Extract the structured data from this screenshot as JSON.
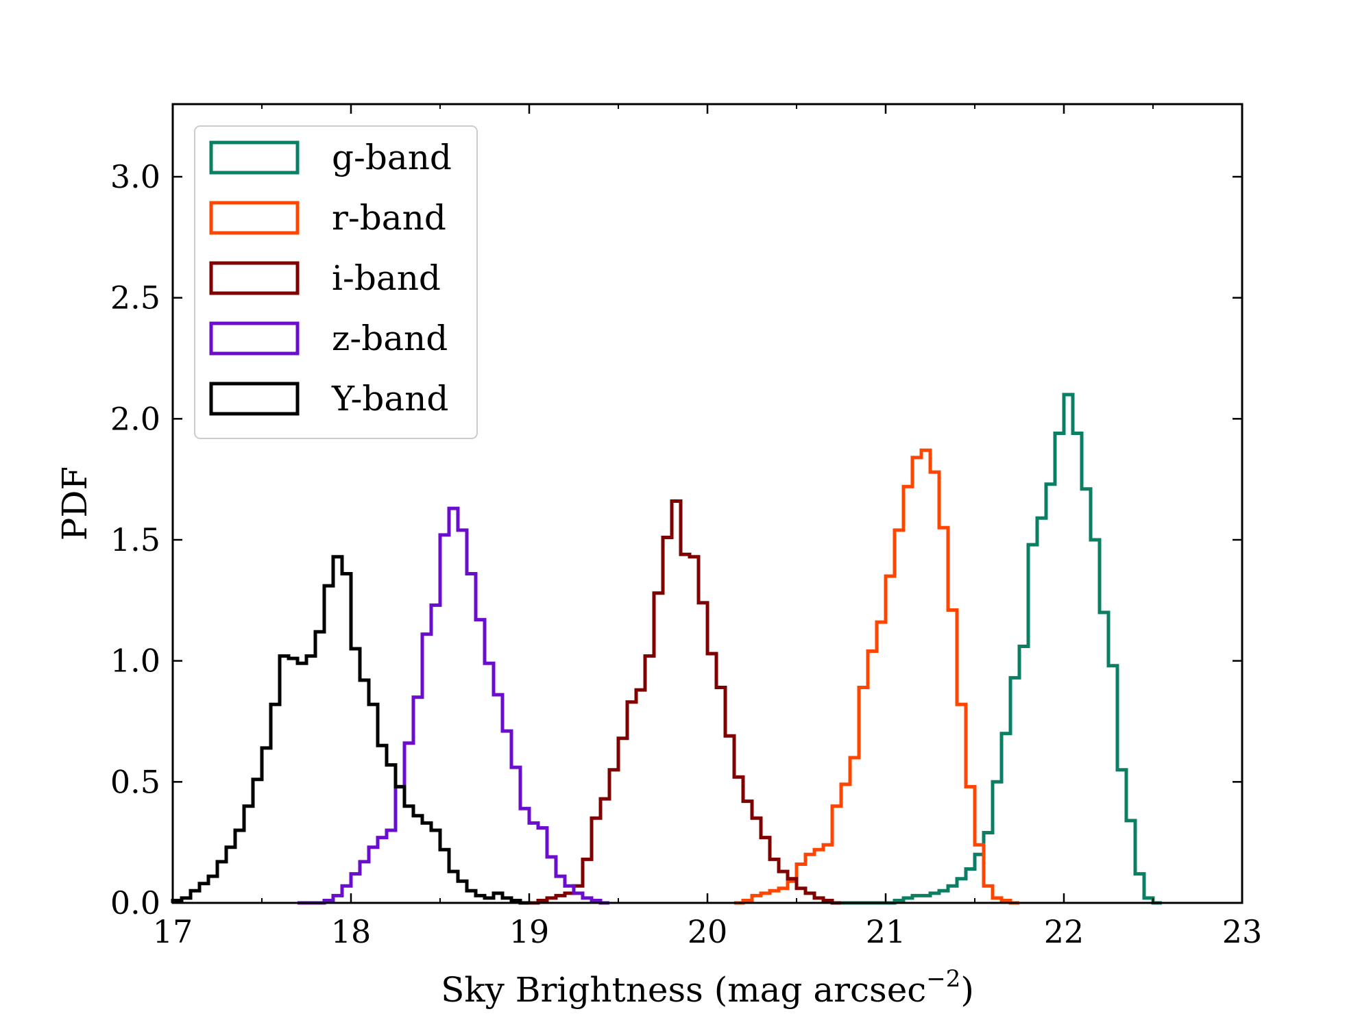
{
  "chart_data": {
    "type": "histogram",
    "title": "",
    "xlabel": "Sky Brightness (mag arcsec",
    "xlabel_superscript": "−2",
    "xlabel_suffix": ")",
    "ylabel": "PDF",
    "xlim": [
      17,
      23
    ],
    "ylim": [
      0,
      3.3
    ],
    "xticks": [
      17,
      18,
      19,
      20,
      21,
      22,
      23
    ],
    "xtick_labels": [
      "17",
      "18",
      "19",
      "20",
      "21",
      "22",
      "23"
    ],
    "yticks": [
      0,
      0.5,
      1.0,
      1.5,
      2.0,
      2.5,
      3.0
    ],
    "ytick_labels": [
      "0.0",
      "0.5",
      "1.0",
      "1.5",
      "2.0",
      "2.5",
      "3.0"
    ],
    "minor_xtick_interval": 0.5,
    "tick_direction": "in",
    "grid": false,
    "legend_position": "upper-left",
    "bin_width": 0.05,
    "series": [
      {
        "name": "g-band",
        "color": "#0b7f63",
        "x_start": 20.7,
        "values": [
          0.0,
          0.0,
          0.0,
          0.0,
          0.0,
          0.0,
          0.0,
          0.01,
          0.02,
          0.03,
          0.03,
          0.04,
          0.05,
          0.07,
          0.1,
          0.14,
          0.2,
          0.29,
          0.5,
          0.7,
          0.93,
          1.06,
          1.48,
          1.59,
          1.73,
          1.94,
          2.1,
          1.94,
          1.71,
          1.5,
          1.2,
          0.98,
          0.55,
          0.34,
          0.12,
          0.02,
          0.0
        ]
      },
      {
        "name": "r-band",
        "color": "#ff4500",
        "x_start": 20.15,
        "values": [
          0.0,
          0.01,
          0.03,
          0.04,
          0.05,
          0.06,
          0.09,
          0.16,
          0.2,
          0.22,
          0.24,
          0.4,
          0.49,
          0.6,
          0.89,
          1.04,
          1.16,
          1.35,
          1.54,
          1.72,
          1.84,
          1.87,
          1.78,
          1.55,
          1.21,
          0.82,
          0.48,
          0.24,
          0.07,
          0.02,
          0.01,
          0.0
        ]
      },
      {
        "name": "i-band",
        "color": "#7f0000",
        "x_start": 19.0,
        "values": [
          0.0,
          0.01,
          0.02,
          0.03,
          0.04,
          0.07,
          0.18,
          0.35,
          0.43,
          0.55,
          0.68,
          0.83,
          0.88,
          1.02,
          1.28,
          1.51,
          1.66,
          1.44,
          1.43,
          1.24,
          1.03,
          0.89,
          0.69,
          0.52,
          0.42,
          0.35,
          0.27,
          0.18,
          0.13,
          0.1,
          0.06,
          0.04,
          0.02,
          0.01,
          0.0
        ]
      },
      {
        "name": "z-band",
        "color": "#6a0dcc",
        "x_start": 17.7,
        "values": [
          0.0,
          0.0,
          0.0,
          0.01,
          0.03,
          0.07,
          0.12,
          0.17,
          0.23,
          0.27,
          0.3,
          0.48,
          0.66,
          0.85,
          1.11,
          1.23,
          1.52,
          1.63,
          1.54,
          1.36,
          1.17,
          0.99,
          0.86,
          0.71,
          0.56,
          0.39,
          0.33,
          0.31,
          0.19,
          0.11,
          0.07,
          0.04,
          0.02,
          0.01,
          0.0
        ]
      },
      {
        "name": "Y-band",
        "color": "#000000",
        "x_start": 17.0,
        "values": [
          0.01,
          0.02,
          0.05,
          0.08,
          0.11,
          0.17,
          0.23,
          0.3,
          0.4,
          0.51,
          0.64,
          0.82,
          1.02,
          1.01,
          0.99,
          1.02,
          1.12,
          1.31,
          1.43,
          1.36,
          1.05,
          0.92,
          0.82,
          0.65,
          0.57,
          0.48,
          0.4,
          0.36,
          0.33,
          0.3,
          0.22,
          0.13,
          0.09,
          0.05,
          0.03,
          0.02,
          0.04,
          0.02,
          0.01,
          0.0
        ]
      }
    ]
  }
}
